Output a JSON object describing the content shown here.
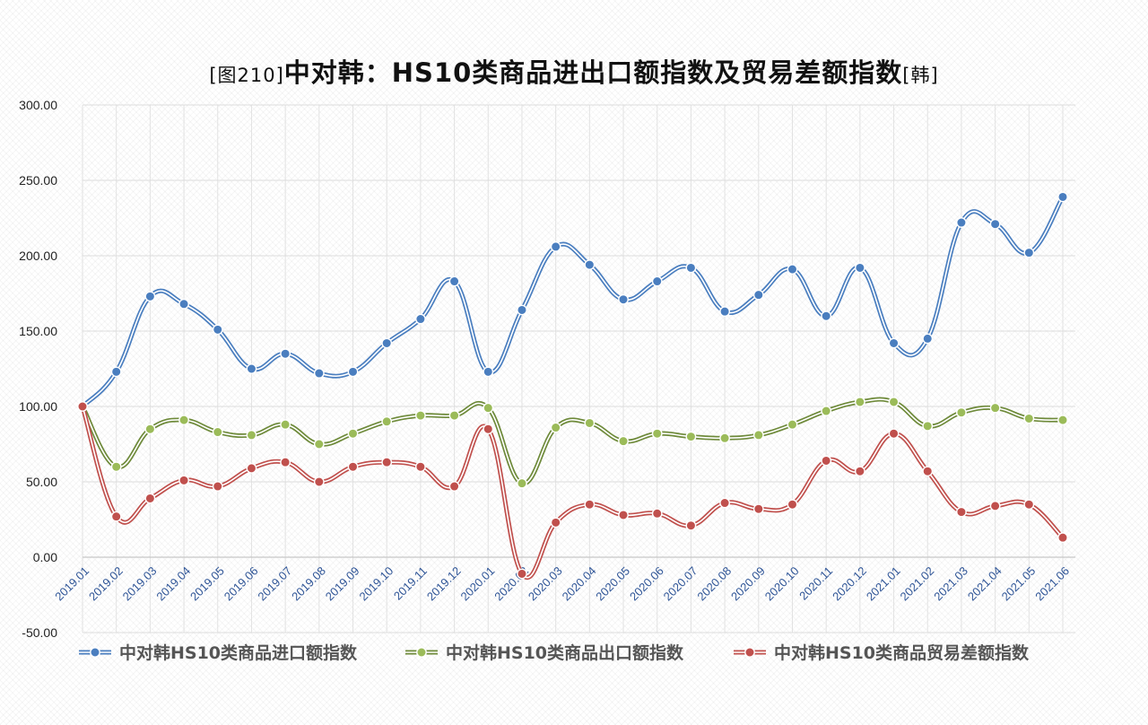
{
  "chart_data": {
    "type": "line",
    "title_prefix": "[图210]",
    "title": "中对韩：HS10类商品进出口额指数及贸易差额指数",
    "title_suffix": "[韩]",
    "categories": [
      "2019.01",
      "2019.02",
      "2019.03",
      "2019.04",
      "2019.05",
      "2019.06",
      "2019.07",
      "2019.08",
      "2019.09",
      "2019.10",
      "2019.11",
      "2019.12",
      "2020.01",
      "2020.02",
      "2020.03",
      "2020.04",
      "2020.05",
      "2020.06",
      "2020.07",
      "2020.08",
      "2020.09",
      "2020.10",
      "2020.11",
      "2020.12",
      "2021.01",
      "2021.02",
      "2021.03",
      "2021.04",
      "2021.05",
      "2021.06"
    ],
    "ylim": [
      -50,
      300
    ],
    "yticks": [
      "-50.00",
      "0.00",
      "50.00",
      "100.00",
      "150.00",
      "200.00",
      "250.00",
      "300.00"
    ],
    "ytick_values": [
      -50,
      0,
      50,
      100,
      150,
      200,
      250,
      300
    ],
    "grid": true,
    "legend_position": "bottom",
    "series": [
      {
        "name": "中对韩HS10类商品进口额指数",
        "color": "#4a7ebf",
        "values": [
          100,
          123,
          173,
          168,
          151,
          125,
          135,
          122,
          123,
          142,
          158,
          183,
          123,
          164,
          206,
          194,
          171,
          183,
          192,
          163,
          174,
          191,
          160,
          192,
          142,
          145,
          222,
          221,
          202,
          239
        ]
      },
      {
        "name": "中对韩HS10类商品出口额指数",
        "color": "#6e8a3a",
        "marker_color": "#9bbb59",
        "values": [
          100,
          60,
          85,
          91,
          83,
          81,
          88,
          75,
          82,
          90,
          94,
          94,
          99,
          49,
          86,
          89,
          77,
          82,
          80,
          79,
          81,
          88,
          97,
          103,
          103,
          87,
          96,
          99,
          92,
          91
        ]
      },
      {
        "name": "中对韩HS10类商品贸易差额指数",
        "color": "#c0504d",
        "values": [
          100,
          27,
          39,
          51,
          47,
          59,
          63,
          50,
          60,
          63,
          60,
          47,
          85,
          -11,
          23,
          35,
          28,
          29,
          21,
          36,
          32,
          35,
          64,
          57,
          82,
          57,
          30,
          34,
          35,
          13
        ]
      }
    ]
  }
}
